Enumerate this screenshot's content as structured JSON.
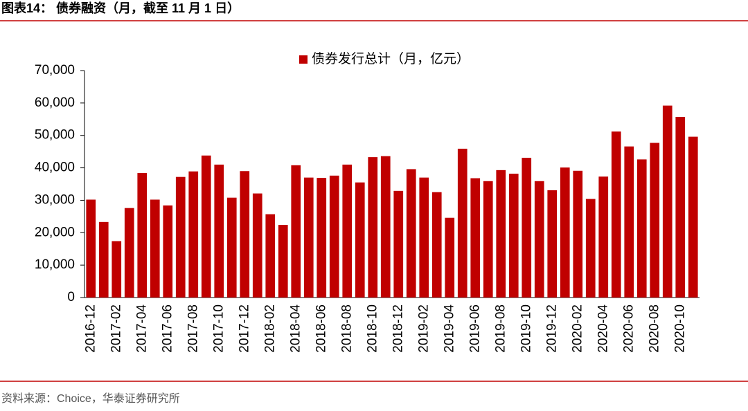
{
  "chart_data": {
    "type": "bar",
    "title": "图表14： 债券融资（月，截至 11 月 1 日）",
    "source": "资料来源：Choice，华泰证券研究所",
    "series": [
      {
        "name": "债券发行总计（月，亿元）",
        "color": "#c00000",
        "values": [
          30200,
          23300,
          17400,
          27600,
          38400,
          30200,
          28400,
          37200,
          38900,
          43800,
          41000,
          30800,
          39000,
          32100,
          25700,
          22400,
          40800,
          37000,
          36900,
          37600,
          41000,
          35500,
          43300,
          43600,
          32900,
          39600,
          37000,
          32500,
          24600,
          45900,
          36800,
          35900,
          39300,
          38200,
          43100,
          35900,
          33100,
          40100,
          39100,
          30400,
          37300,
          51200,
          46600,
          42600,
          47700,
          59200,
          55700,
          49600
        ]
      }
    ],
    "categories": [
      "2016-12",
      null,
      "2017-02",
      null,
      "2017-04",
      null,
      "2017-06",
      null,
      "2017-08",
      null,
      "2017-10",
      null,
      "2017-12",
      null,
      "2018-02",
      null,
      "2018-04",
      null,
      "2018-06",
      null,
      "2018-08",
      null,
      "2018-10",
      null,
      "2018-12",
      null,
      "2019-02",
      null,
      "2019-04",
      null,
      "2019-06",
      null,
      "2019-08",
      null,
      "2019-10",
      null,
      "2019-12",
      null,
      "2020-02",
      null,
      "2020-04",
      null,
      "2020-06",
      null,
      "2020-08",
      null,
      "2020-10",
      null
    ],
    "ylim": [
      0,
      70000
    ],
    "yticks": [
      0,
      {
        "value": 10000,
        "label": "10,000"
      },
      {
        "value": 20000,
        "label": "20,000"
      },
      {
        "value": 30000,
        "label": "30,000"
      },
      {
        "value": 40000,
        "label": "40,000"
      },
      {
        "value": 50000,
        "label": "50,000"
      },
      {
        "value": 60000,
        "label": "60,000"
      },
      {
        "value": 70000,
        "label": "70,000"
      }
    ],
    "legend": "top"
  }
}
